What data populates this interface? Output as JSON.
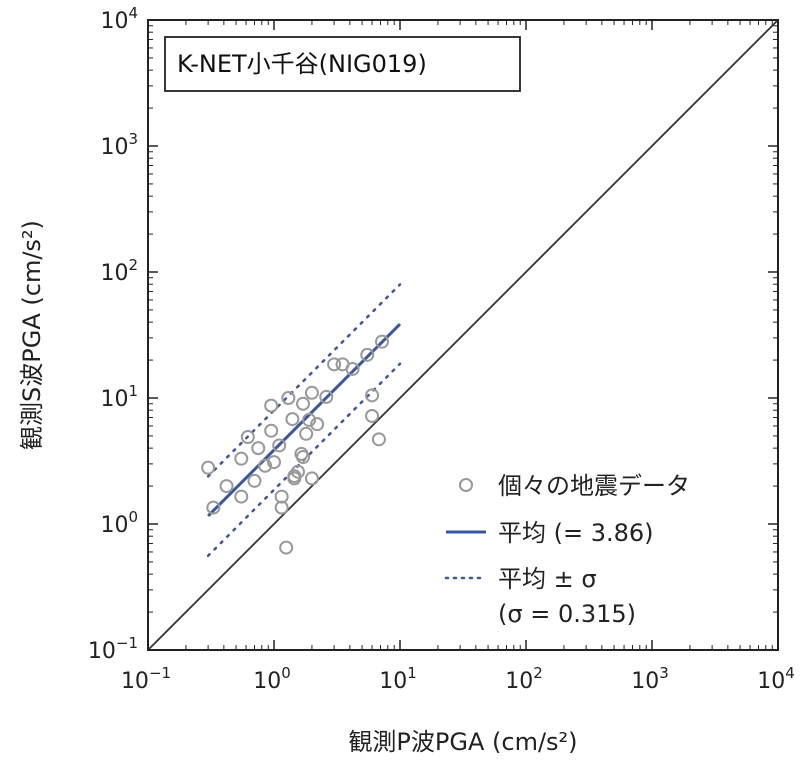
{
  "chart_data": {
    "type": "scatter",
    "title": "K-NET小千谷(NIG019)",
    "xlabel": "観測P波PGA (cm/s²)",
    "ylabel": "観測S波PGA (cm/s²)",
    "xscale": "log",
    "yscale": "log",
    "xlim": [
      0.1,
      10000
    ],
    "ylim": [
      0.1,
      10000
    ],
    "ticks": [
      {
        "value": 0.1,
        "base": "10",
        "exp": "−1"
      },
      {
        "value": 1,
        "base": "10",
        "exp": "0"
      },
      {
        "value": 10,
        "base": "10",
        "exp": "1"
      },
      {
        "value": 100,
        "base": "10",
        "exp": "2"
      },
      {
        "value": 1000,
        "base": "10",
        "exp": "3"
      },
      {
        "value": 10000,
        "base": "10",
        "exp": "4"
      }
    ],
    "grid": false,
    "legend_position": "bottom-right",
    "series": [
      {
        "name": "個々の地震データ",
        "kind": "scatter",
        "color": "#999999",
        "points": [
          [
            0.3,
            2.8
          ],
          [
            0.33,
            1.35
          ],
          [
            0.42,
            2.0
          ],
          [
            0.55,
            3.3
          ],
          [
            0.55,
            1.65
          ],
          [
            0.62,
            4.9
          ],
          [
            0.7,
            2.2
          ],
          [
            0.75,
            4.0
          ],
          [
            0.85,
            2.9
          ],
          [
            0.95,
            8.7
          ],
          [
            0.95,
            5.5
          ],
          [
            1.0,
            3.1
          ],
          [
            1.1,
            4.2
          ],
          [
            1.15,
            1.65
          ],
          [
            1.15,
            1.35
          ],
          [
            1.25,
            0.65
          ],
          [
            1.3,
            10.0
          ],
          [
            1.4,
            6.8
          ],
          [
            1.45,
            2.4
          ],
          [
            1.45,
            2.3
          ],
          [
            1.55,
            2.6
          ],
          [
            1.65,
            3.6
          ],
          [
            1.7,
            9.0
          ],
          [
            1.7,
            3.4
          ],
          [
            1.8,
            5.2
          ],
          [
            1.9,
            6.7
          ],
          [
            2.0,
            11.0
          ],
          [
            2.0,
            2.3
          ],
          [
            2.2,
            6.2
          ],
          [
            2.6,
            10.2
          ],
          [
            3.0,
            18.5
          ],
          [
            3.5,
            18.5
          ],
          [
            4.2,
            17.0
          ],
          [
            5.5,
            22.0
          ],
          [
            6.0,
            10.5
          ],
          [
            6.0,
            7.2
          ],
          [
            6.8,
            4.7
          ],
          [
            7.2,
            28.0
          ]
        ]
      },
      {
        "name": "平均 (= 3.86)",
        "kind": "line",
        "color": "#3b55a5",
        "style": "solid",
        "points": [
          [
            0.3,
            1.16
          ],
          [
            10,
            38.6
          ]
        ]
      },
      {
        "name": "平均 ± σ",
        "note": "(σ = 0.315)",
        "kind": "line",
        "color": "#3b55a5",
        "style": "dotted",
        "points": [
          [
            0.3,
            2.39
          ],
          [
            10,
            79.7
          ]
        ]
      },
      {
        "kind": "line",
        "color": "#3b55a5",
        "style": "dotted",
        "points": [
          [
            0.3,
            0.56
          ],
          [
            10,
            18.7
          ]
        ]
      },
      {
        "kind": "line",
        "color": "#333333",
        "style": "solid",
        "points": [
          [
            0.1,
            0.1
          ],
          [
            10000,
            10000
          ]
        ]
      }
    ]
  }
}
